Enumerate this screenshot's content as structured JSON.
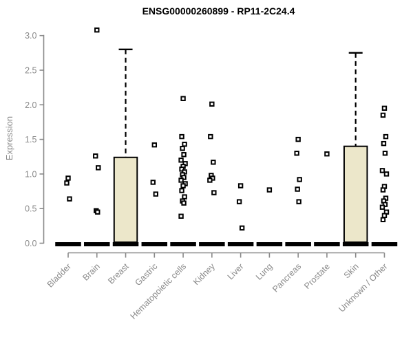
{
  "chart_data": {
    "type": "boxplot",
    "title": "ENSG00000260899 - RP11-2C24.4",
    "ylabel": "Expression",
    "xlabel": "",
    "ylim": [
      0.0,
      3.0
    ],
    "yticks": [
      "0.0",
      "0.5",
      "1.0",
      "1.5",
      "2.0",
      "2.5",
      "3.0"
    ],
    "grid": false,
    "legend": "none",
    "categories": [
      "Bladder",
      "Brain",
      "Breast",
      "Gastric",
      "Hematopoietic cells",
      "Kidney",
      "Liver",
      "Lung",
      "Pancreas",
      "Prostate",
      "Skin",
      "Unknown / Other"
    ],
    "boxes": [
      {
        "category": "Bladder",
        "median": 0,
        "q1": 0,
        "q3": 0,
        "whisker_high": 0,
        "points": [
          0.94,
          0.87,
          0.64
        ]
      },
      {
        "category": "Brain",
        "median": 0,
        "q1": 0,
        "q3": 0,
        "whisker_high": 0,
        "points": [
          3.08,
          1.26,
          1.09,
          0.47,
          0.45
        ]
      },
      {
        "category": "Breast",
        "median": 0,
        "q1": 0,
        "q3": 1.24,
        "whisker_high": 2.8,
        "points": []
      },
      {
        "category": "Gastric",
        "median": 0,
        "q1": 0,
        "q3": 0,
        "whisker_high": 0,
        "points": [
          1.42,
          0.88,
          0.71
        ]
      },
      {
        "category": "Hematopoietic cells",
        "median": 0,
        "q1": 0,
        "q3": 0,
        "whisker_high": 0,
        "points": [
          2.09,
          1.54,
          1.43,
          1.37,
          1.28,
          1.2,
          1.15,
          1.11,
          1.07,
          1.03,
          0.99,
          0.95,
          0.91,
          0.86,
          0.83,
          0.76,
          0.67,
          0.61,
          0.58,
          0.39
        ]
      },
      {
        "category": "Kidney",
        "median": 0,
        "q1": 0,
        "q3": 0,
        "whisker_high": 0,
        "points": [
          2.01,
          1.54,
          1.17,
          0.98,
          0.94,
          0.91,
          0.73
        ]
      },
      {
        "category": "Liver",
        "median": 0,
        "q1": 0,
        "q3": 0,
        "whisker_high": 0,
        "points": [
          0.83,
          0.6,
          0.22
        ]
      },
      {
        "category": "Lung",
        "median": 0,
        "q1": 0,
        "q3": 0,
        "whisker_high": 0,
        "points": [
          0.77
        ]
      },
      {
        "category": "Pancreas",
        "median": 0,
        "q1": 0,
        "q3": 0,
        "whisker_high": 0,
        "points": [
          1.5,
          1.3,
          0.92,
          0.78,
          0.6
        ]
      },
      {
        "category": "Prostate",
        "median": 0,
        "q1": 0,
        "q3": 0,
        "whisker_high": 0,
        "points": [
          1.29
        ]
      },
      {
        "category": "Skin",
        "median": 0,
        "q1": 0,
        "q3": 1.4,
        "whisker_high": 2.75,
        "points": []
      },
      {
        "category": "Unknown / Other",
        "median": 0,
        "q1": 0,
        "q3": 0,
        "whisker_high": 0,
        "points": [
          1.95,
          1.85,
          1.54,
          1.44,
          1.3,
          1.05,
          1.0,
          0.82,
          0.77,
          0.65,
          0.61,
          0.56,
          0.52,
          0.45,
          0.4,
          0.34
        ]
      }
    ],
    "colors": {
      "box_fill": "#ece7ca",
      "box_border": "#000000",
      "median_bar": "#000000",
      "point_stroke": "#000000",
      "point_fill": "#ffffff",
      "axis": "#898989",
      "tick_label": "#898989",
      "title": "#000000",
      "background": "#ffffff"
    }
  }
}
